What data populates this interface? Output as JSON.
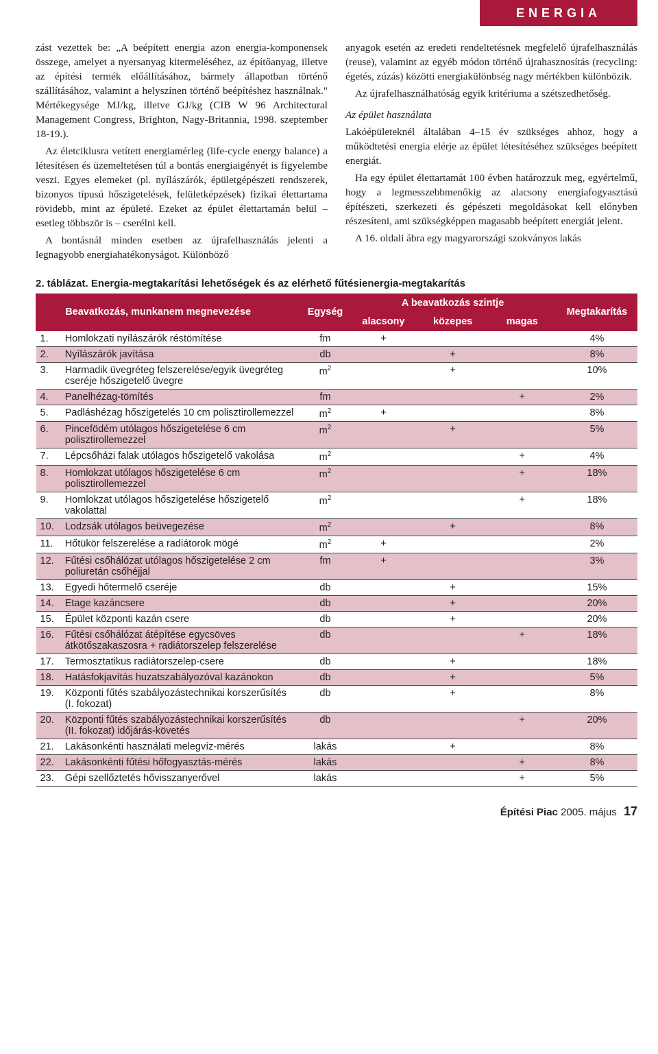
{
  "header": {
    "category": "ENERGIA"
  },
  "article": {
    "left": [
      "zást vezettek be: „A beépített energia azon energia-komponensek összege, amelyet a nyersanyag kitermeléséhez, az építőanyag, illetve az építési termék előállításához, bármely állapotban történő szállításához, valamint a helyszínen történő beépítéshez használnak.\" Mértékegysége MJ/kg, illetve GJ/kg (CIB W 96 Architectural Management Congress, Brighton, Nagy-Britannia, 1998. szeptember 18-19.).",
      "Az életciklusra vetített energiamérleg (life-cycle energy balance) a létesítésen és üzemeltetésen túl a bontás energiaigényét is figyelembe veszi. Egyes elemeket (pl. nyílászárók, épületgépészeti rendszerek, bizonyos típusú hőszigetelések, felületképzések) fizikai élettartama rövidebb, mint az épületé. Ezeket az épület élettartamán belül – esetleg többször is – cserélni kell.",
      "A bontásnál minden esetben az újrafelhasználás jelenti a legnagyobb energiahatékonyságot. Különböző"
    ],
    "right_a": [
      "anyagok esetén az eredeti rendeltetésnek megfelelő újrafelhasználás (reuse), valamint az egyéb módon történő újrahasznosítás (recycling: égetés, zúzás) közötti energiakülönbség nagy mértékben különbözik.",
      "Az újrafelhasználhatóság egyik kritériuma a szétszedhetőség."
    ],
    "right_head": "Az épület használata",
    "right_b": [
      "Lakóépületeknél általában 4–15 év szükséges ahhoz, hogy a működtetési energia elérje az épület létesítéséhez szükséges beépített energiát.",
      "Ha egy épület élettartamát 100 évben határozzuk meg, egyértelmű, hogy a legmesszebbmenőkig az alacsony energiafogyasztású építészeti, szerkezeti és gépészeti megoldásokat kell előnyben részesíteni, ami szükségképpen magasabb beépített energiát jelent.",
      "A 16. oldali ábra egy magyarországi szokványos lakás"
    ]
  },
  "table": {
    "title": "2. táblázat. Energia-megtakarítási lehetőségek és az elérhető fűtésienergia-megtakarítás",
    "head": {
      "col1": "Beavatkozás, munkanem megnevezése",
      "col2": "Egység",
      "col3": "A beavatkozás szintje",
      "sub_low": "alacsony",
      "sub_mid": "közepes",
      "sub_high": "magas",
      "col4": "Megtakarítás"
    },
    "rows": [
      {
        "n": "1.",
        "desc": "Homlokzati nyílászárók réstömítése",
        "unit": "fm",
        "low": "+",
        "mid": "",
        "high": "",
        "save": "4%",
        "shade": false
      },
      {
        "n": "2.",
        "desc": "Nyílászárók javítása",
        "unit": "db",
        "low": "",
        "mid": "+",
        "high": "",
        "save": "8%",
        "shade": true
      },
      {
        "n": "3.",
        "desc": "Harmadik üvegréteg felszerelése/egyik üvegréteg cseréje hőszigetelő üvegre",
        "unit": "m²",
        "low": "",
        "mid": "+",
        "high": "",
        "save": "10%",
        "shade": false
      },
      {
        "n": "4.",
        "desc": "Panelhézag-tömítés",
        "unit": "fm",
        "low": "",
        "mid": "",
        "high": "+",
        "save": "2%",
        "shade": true
      },
      {
        "n": "5.",
        "desc": "Padláshézag hőszigetelés 10 cm polisztirollemezzel",
        "unit": "m²",
        "low": "+",
        "mid": "",
        "high": "",
        "save": "8%",
        "shade": false
      },
      {
        "n": "6.",
        "desc": "Pincefödém utólagos hőszigetelése 6 cm polisztirollemezzel",
        "unit": "m²",
        "low": "",
        "mid": "+",
        "high": "",
        "save": "5%",
        "shade": true
      },
      {
        "n": "7.",
        "desc": "Lépcsőházi falak utólagos hőszigetelő vakolása",
        "unit": "m²",
        "low": "",
        "mid": "",
        "high": "+",
        "save": "4%",
        "shade": false
      },
      {
        "n": "8.",
        "desc": "Homlokzat utólagos hőszigetelése 6 cm polisztirollemezzel",
        "unit": "m²",
        "low": "",
        "mid": "",
        "high": "+",
        "save": "18%",
        "shade": true
      },
      {
        "n": "9.",
        "desc": "Homlokzat utólagos hőszigetelése hőszigetelő vakolattal",
        "unit": "m²",
        "low": "",
        "mid": "",
        "high": "+",
        "save": "18%",
        "shade": false
      },
      {
        "n": "10.",
        "desc": "Lodzsák utólagos beüvegezése",
        "unit": "m²",
        "low": "",
        "mid": "+",
        "high": "",
        "save": "8%",
        "shade": true
      },
      {
        "n": "11.",
        "desc": "Hőtükör felszerelése a radiátorok mögé",
        "unit": "m²",
        "low": "+",
        "mid": "",
        "high": "",
        "save": "2%",
        "shade": false
      },
      {
        "n": "12.",
        "desc": "Fűtési csőhálózat utólagos hőszigetelése 2 cm poliuretán csőhéjjal",
        "unit": "fm",
        "low": "+",
        "mid": "",
        "high": "",
        "save": "3%",
        "shade": true
      },
      {
        "n": "13.",
        "desc": "Egyedi hőtermelő cseréje",
        "unit": "db",
        "low": "",
        "mid": "+",
        "high": "",
        "save": "15%",
        "shade": false
      },
      {
        "n": "14.",
        "desc": "Etage kazáncsere",
        "unit": "db",
        "low": "",
        "mid": "+",
        "high": "",
        "save": "20%",
        "shade": true
      },
      {
        "n": "15.",
        "desc": "Épület központi kazán csere",
        "unit": "db",
        "low": "",
        "mid": "+",
        "high": "",
        "save": "20%",
        "shade": false
      },
      {
        "n": "16.",
        "desc": "Fűtési csőhálózat átépítése egycsöves átkötőszakaszosra + radiátorszelep felszerelése",
        "unit": "db",
        "low": "",
        "mid": "",
        "high": "+",
        "save": "18%",
        "shade": true
      },
      {
        "n": "17.",
        "desc": "Termosztatikus radiátorszelep-csere",
        "unit": "db",
        "low": "",
        "mid": "+",
        "high": "",
        "save": "18%",
        "shade": false
      },
      {
        "n": "18.",
        "desc": "Hatásfokjavítás huzatszabályozóval kazánokon",
        "unit": "db",
        "low": "",
        "mid": "+",
        "high": "",
        "save": "5%",
        "shade": true
      },
      {
        "n": "19.",
        "desc": "Központi fűtés szabályozástechnikai korszerűsítés (I. fokozat)",
        "unit": "db",
        "low": "",
        "mid": "+",
        "high": "",
        "save": "8%",
        "shade": false
      },
      {
        "n": "20.",
        "desc": "Központi fűtés szabályozástechnikai korszerűsítés (II. fokozat) időjárás-követés",
        "unit": "db",
        "low": "",
        "mid": "",
        "high": "+",
        "save": "20%",
        "shade": true
      },
      {
        "n": "21.",
        "desc": "Lakásonkénti használati melegvíz-mérés",
        "unit": "lakás",
        "low": "",
        "mid": "+",
        "high": "",
        "save": "8%",
        "shade": false
      },
      {
        "n": "22.",
        "desc": "Lakásonkénti fűtési hőfogyasztás-mérés",
        "unit": "lakás",
        "low": "",
        "mid": "",
        "high": "+",
        "save": "8%",
        "shade": true
      },
      {
        "n": "23.",
        "desc": "Gépi szellőztetés hővisszanyerővel",
        "unit": "lakás",
        "low": "",
        "mid": "",
        "high": "+",
        "save": "5%",
        "shade": false
      }
    ]
  },
  "footer": {
    "mag": "Építési Piac",
    "issue": "2005. május",
    "page": "17"
  }
}
